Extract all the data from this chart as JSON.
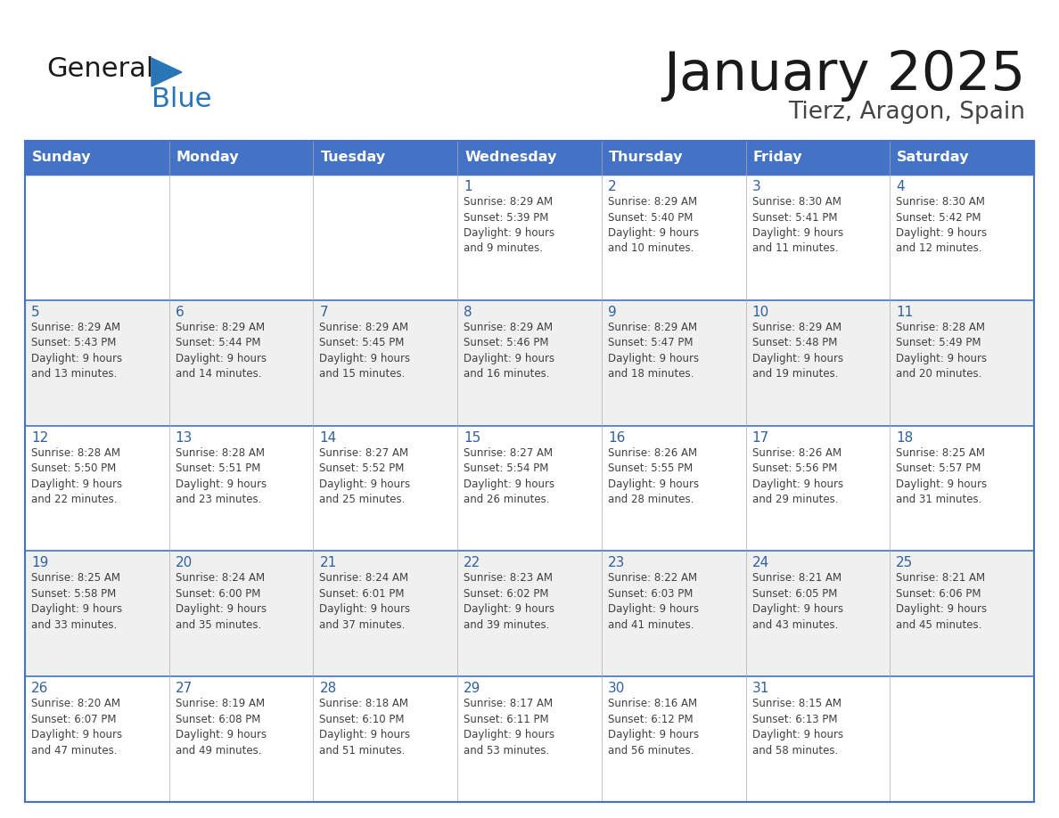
{
  "title": "January 2025",
  "subtitle": "Tierz, Aragon, Spain",
  "days_of_week": [
    "Sunday",
    "Monday",
    "Tuesday",
    "Wednesday",
    "Thursday",
    "Friday",
    "Saturday"
  ],
  "header_bg": "#4472C4",
  "header_text": "#FFFFFF",
  "cell_bg_white": "#FFFFFF",
  "cell_bg_gray": "#F0F0F0",
  "day_num_color": "#3060A0",
  "cell_text_color": "#404040",
  "border_color": "#4472C4",
  "row_line_color": "#4472C4",
  "title_color": "#1a1a1a",
  "subtitle_color": "#444444",
  "logo_text_color": "#1a1a1a",
  "logo_blue_color": "#2a74b8",
  "calendar_data": [
    [
      {
        "day": "",
        "info": ""
      },
      {
        "day": "",
        "info": ""
      },
      {
        "day": "",
        "info": ""
      },
      {
        "day": "1",
        "info": "Sunrise: 8:29 AM\nSunset: 5:39 PM\nDaylight: 9 hours\nand 9 minutes."
      },
      {
        "day": "2",
        "info": "Sunrise: 8:29 AM\nSunset: 5:40 PM\nDaylight: 9 hours\nand 10 minutes."
      },
      {
        "day": "3",
        "info": "Sunrise: 8:30 AM\nSunset: 5:41 PM\nDaylight: 9 hours\nand 11 minutes."
      },
      {
        "day": "4",
        "info": "Sunrise: 8:30 AM\nSunset: 5:42 PM\nDaylight: 9 hours\nand 12 minutes."
      }
    ],
    [
      {
        "day": "5",
        "info": "Sunrise: 8:29 AM\nSunset: 5:43 PM\nDaylight: 9 hours\nand 13 minutes."
      },
      {
        "day": "6",
        "info": "Sunrise: 8:29 AM\nSunset: 5:44 PM\nDaylight: 9 hours\nand 14 minutes."
      },
      {
        "day": "7",
        "info": "Sunrise: 8:29 AM\nSunset: 5:45 PM\nDaylight: 9 hours\nand 15 minutes."
      },
      {
        "day": "8",
        "info": "Sunrise: 8:29 AM\nSunset: 5:46 PM\nDaylight: 9 hours\nand 16 minutes."
      },
      {
        "day": "9",
        "info": "Sunrise: 8:29 AM\nSunset: 5:47 PM\nDaylight: 9 hours\nand 18 minutes."
      },
      {
        "day": "10",
        "info": "Sunrise: 8:29 AM\nSunset: 5:48 PM\nDaylight: 9 hours\nand 19 minutes."
      },
      {
        "day": "11",
        "info": "Sunrise: 8:28 AM\nSunset: 5:49 PM\nDaylight: 9 hours\nand 20 minutes."
      }
    ],
    [
      {
        "day": "12",
        "info": "Sunrise: 8:28 AM\nSunset: 5:50 PM\nDaylight: 9 hours\nand 22 minutes."
      },
      {
        "day": "13",
        "info": "Sunrise: 8:28 AM\nSunset: 5:51 PM\nDaylight: 9 hours\nand 23 minutes."
      },
      {
        "day": "14",
        "info": "Sunrise: 8:27 AM\nSunset: 5:52 PM\nDaylight: 9 hours\nand 25 minutes."
      },
      {
        "day": "15",
        "info": "Sunrise: 8:27 AM\nSunset: 5:54 PM\nDaylight: 9 hours\nand 26 minutes."
      },
      {
        "day": "16",
        "info": "Sunrise: 8:26 AM\nSunset: 5:55 PM\nDaylight: 9 hours\nand 28 minutes."
      },
      {
        "day": "17",
        "info": "Sunrise: 8:26 AM\nSunset: 5:56 PM\nDaylight: 9 hours\nand 29 minutes."
      },
      {
        "day": "18",
        "info": "Sunrise: 8:25 AM\nSunset: 5:57 PM\nDaylight: 9 hours\nand 31 minutes."
      }
    ],
    [
      {
        "day": "19",
        "info": "Sunrise: 8:25 AM\nSunset: 5:58 PM\nDaylight: 9 hours\nand 33 minutes."
      },
      {
        "day": "20",
        "info": "Sunrise: 8:24 AM\nSunset: 6:00 PM\nDaylight: 9 hours\nand 35 minutes."
      },
      {
        "day": "21",
        "info": "Sunrise: 8:24 AM\nSunset: 6:01 PM\nDaylight: 9 hours\nand 37 minutes."
      },
      {
        "day": "22",
        "info": "Sunrise: 8:23 AM\nSunset: 6:02 PM\nDaylight: 9 hours\nand 39 minutes."
      },
      {
        "day": "23",
        "info": "Sunrise: 8:22 AM\nSunset: 6:03 PM\nDaylight: 9 hours\nand 41 minutes."
      },
      {
        "day": "24",
        "info": "Sunrise: 8:21 AM\nSunset: 6:05 PM\nDaylight: 9 hours\nand 43 minutes."
      },
      {
        "day": "25",
        "info": "Sunrise: 8:21 AM\nSunset: 6:06 PM\nDaylight: 9 hours\nand 45 minutes."
      }
    ],
    [
      {
        "day": "26",
        "info": "Sunrise: 8:20 AM\nSunset: 6:07 PM\nDaylight: 9 hours\nand 47 minutes."
      },
      {
        "day": "27",
        "info": "Sunrise: 8:19 AM\nSunset: 6:08 PM\nDaylight: 9 hours\nand 49 minutes."
      },
      {
        "day": "28",
        "info": "Sunrise: 8:18 AM\nSunset: 6:10 PM\nDaylight: 9 hours\nand 51 minutes."
      },
      {
        "day": "29",
        "info": "Sunrise: 8:17 AM\nSunset: 6:11 PM\nDaylight: 9 hours\nand 53 minutes."
      },
      {
        "day": "30",
        "info": "Sunrise: 8:16 AM\nSunset: 6:12 PM\nDaylight: 9 hours\nand 56 minutes."
      },
      {
        "day": "31",
        "info": "Sunrise: 8:15 AM\nSunset: 6:13 PM\nDaylight: 9 hours\nand 58 minutes."
      },
      {
        "day": "",
        "info": ""
      }
    ]
  ]
}
